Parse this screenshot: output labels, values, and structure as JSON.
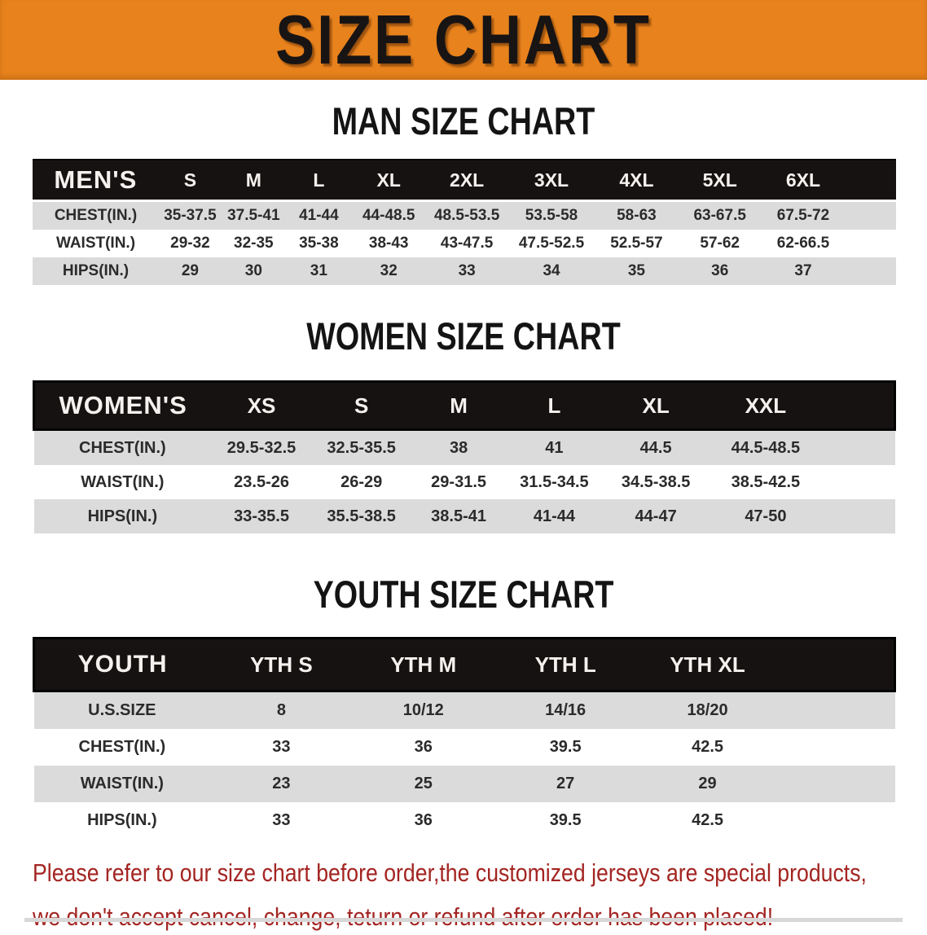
{
  "colors": {
    "banner-bg": "#E8821C",
    "banner-text": "#181414",
    "bar-bg": "#171212",
    "stripe": "#DBDBDB",
    "warn-red": "#A32522"
  },
  "banner": {
    "title": "SIZE CHART"
  },
  "sections": [
    {
      "heading": "MAN SIZE CHART",
      "corner_label": "MEN'S",
      "columns": [
        "S",
        "M",
        "L",
        "XL",
        "2XL",
        "3XL",
        "4XL",
        "5XL",
        "6XL"
      ],
      "rows": [
        {
          "label": "CHEST(IN.)",
          "values": [
            "35-37.5",
            "37.5-41",
            "41-44",
            "44-48.5",
            "48.5-53.5",
            "53.5-58",
            "58-63",
            "63-67.5",
            "67.5-72"
          ]
        },
        {
          "label": "WAIST(IN.)",
          "values": [
            "29-32",
            "32-35",
            "35-38",
            "38-43",
            "43-47.5",
            "47.5-52.5",
            "52.5-57",
            "57-62",
            "62-66.5"
          ]
        },
        {
          "label": "HIPS(IN.)",
          "values": [
            "29",
            "30",
            "31",
            "32",
            "33",
            "34",
            "35",
            "36",
            "37"
          ]
        }
      ]
    },
    {
      "heading": "WOMEN SIZE CHART",
      "corner_label": "WOMEN'S",
      "columns": [
        "XS",
        "S",
        "M",
        "L",
        "XL",
        "XXL"
      ],
      "rows": [
        {
          "label": "CHEST(IN.)",
          "values": [
            "29.5-32.5",
            "32.5-35.5",
            "38",
            "41",
            "44.5",
            "44.5-48.5"
          ]
        },
        {
          "label": "WAIST(IN.)",
          "values": [
            "23.5-26",
            "26-29",
            "29-31.5",
            "31.5-34.5",
            "34.5-38.5",
            "38.5-42.5"
          ]
        },
        {
          "label": "HIPS(IN.)",
          "values": [
            "33-35.5",
            "35.5-38.5",
            "38.5-41",
            "41-44",
            "44-47",
            "47-50"
          ]
        }
      ]
    },
    {
      "heading": "YOUTH SIZE CHART",
      "corner_label": "YOUTH",
      "columns": [
        "YTH S",
        "YTH M",
        "YTH L",
        "YTH XL"
      ],
      "rows": [
        {
          "label": "U.S.SIZE",
          "values": [
            "8",
            "10/12",
            "14/16",
            "18/20"
          ]
        },
        {
          "label": "CHEST(IN.)",
          "values": [
            "33",
            "36",
            "39.5",
            "42.5"
          ]
        },
        {
          "label": "WAIST(IN.)",
          "values": [
            "23",
            "25",
            "27",
            "29"
          ]
        },
        {
          "label": "HIPS(IN.)",
          "values": [
            "33",
            "36",
            "39.5",
            "42.5"
          ]
        }
      ]
    }
  ],
  "disclaimer": {
    "line1": "Please refer to our size chart before order,the customized jerseys are special products,",
    "line2": "we don't accept cancel, change, teturn or refund after order has been placed!"
  }
}
